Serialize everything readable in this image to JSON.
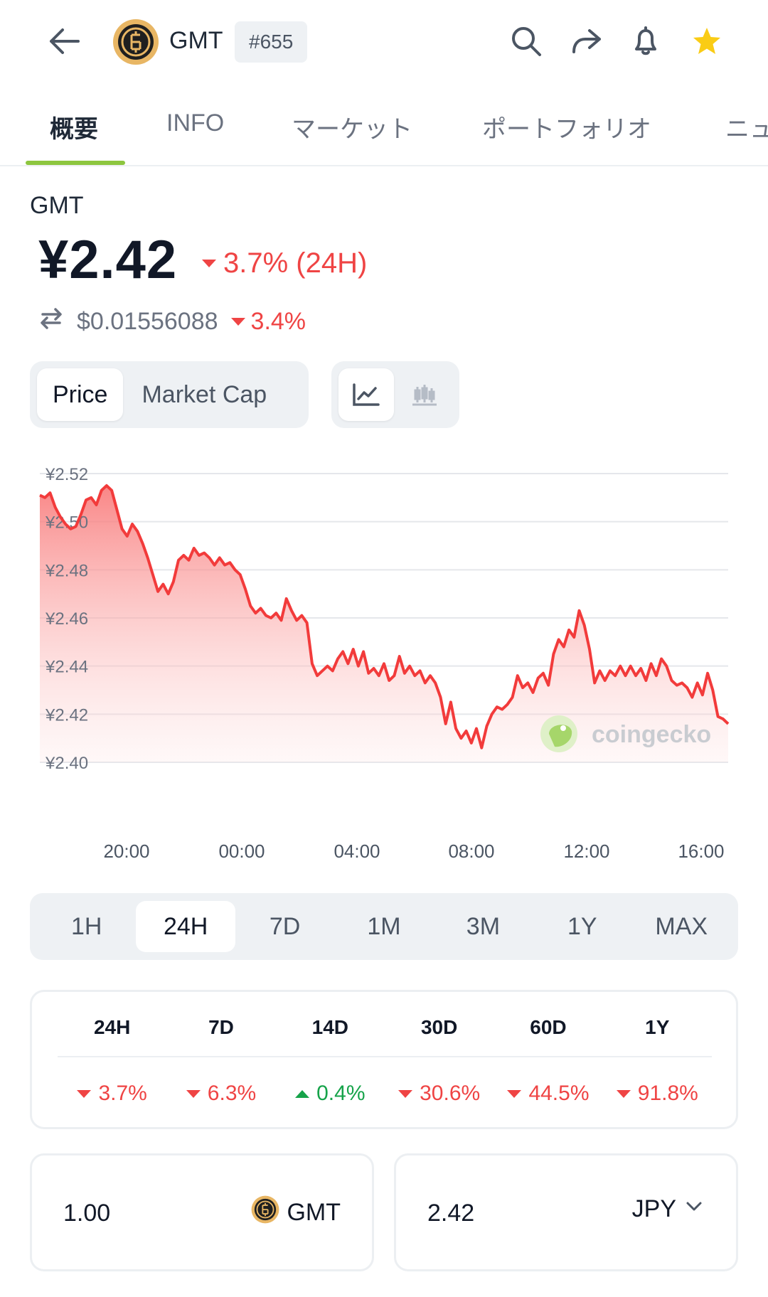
{
  "header": {
    "symbol": "GMT",
    "rank": "#655",
    "icons": [
      "back-arrow-icon",
      "search-icon",
      "share-icon",
      "bell-icon",
      "star-icon"
    ]
  },
  "tabs": [
    {
      "label": "概要",
      "active": true
    },
    {
      "label": "INFO",
      "active": false
    },
    {
      "label": "マーケット",
      "active": false
    },
    {
      "label": "ポートフォリオ",
      "active": false
    },
    {
      "label": "ニュ",
      "active": false
    }
  ],
  "coin": {
    "name": "GMT",
    "price": "¥2.42",
    "change_24h": "3.7% (24H)",
    "usd_price": "$0.01556088",
    "usd_change": "3.4%"
  },
  "toggles": {
    "metric": [
      "Price",
      "Market Cap"
    ],
    "metric_active": "Price",
    "chart_style_icons": [
      "line-chart-icon",
      "candlestick-chart-icon"
    ]
  },
  "colors": {
    "accent_green": "#8dc63f",
    "negative": "#ef4444",
    "positive": "#16a34a",
    "chart_line": "#f23b3b"
  },
  "chart_data": {
    "type": "area",
    "ylim": [
      2.4,
      2.52
    ],
    "yticks": [
      "¥2.52",
      "¥2.50",
      "¥2.48",
      "¥2.46",
      "¥2.44",
      "¥2.42",
      "¥2.40"
    ],
    "xticks": [
      "20:00",
      "00:00",
      "04:00",
      "08:00",
      "12:00",
      "16:00"
    ],
    "watermark": "coingecko",
    "grid": true,
    "series": [
      {
        "values": [
          2.511,
          2.51,
          2.512,
          2.506,
          2.502,
          2.499,
          2.497,
          2.498,
          2.503,
          2.509,
          2.51,
          2.507,
          2.513,
          2.515,
          2.513,
          2.505,
          2.497,
          2.494,
          2.499,
          2.496,
          2.491,
          2.485,
          2.478,
          2.471,
          2.474,
          2.47,
          2.475,
          2.484,
          2.486,
          2.484,
          2.489,
          2.486,
          2.487,
          2.485,
          2.482,
          2.485,
          2.482,
          2.483,
          2.48,
          2.478,
          2.472,
          2.465,
          2.462,
          2.464,
          2.461,
          2.46,
          2.462,
          2.459,
          2.468,
          2.463,
          2.459,
          2.461,
          2.458,
          2.441,
          2.436,
          2.438,
          2.44,
          2.438,
          2.443,
          2.446,
          2.441,
          2.447,
          2.44,
          2.446,
          2.437,
          2.439,
          2.436,
          2.441,
          2.434,
          2.436,
          2.444,
          2.437,
          2.44,
          2.436,
          2.438,
          2.433,
          2.436,
          2.433,
          2.427,
          2.416,
          2.425,
          2.414,
          2.41,
          2.413,
          2.408,
          2.414,
          2.406,
          2.415,
          2.42,
          2.423,
          2.422,
          2.424,
          2.427,
          2.436,
          2.431,
          2.433,
          2.429,
          2.435,
          2.437,
          2.432,
          2.445,
          2.451,
          2.448,
          2.455,
          2.452,
          2.463,
          2.457,
          2.447,
          2.433,
          2.438,
          2.434,
          2.438,
          2.436,
          2.44,
          2.436,
          2.44,
          2.436,
          2.439,
          2.434,
          2.441,
          2.436,
          2.443,
          2.44,
          2.434,
          2.432,
          2.433,
          2.431,
          2.427,
          2.433,
          2.428,
          2.437,
          2.43,
          2.419,
          2.418,
          2.416
        ]
      }
    ]
  },
  "ranges": {
    "items": [
      "1H",
      "24H",
      "7D",
      "1M",
      "3M",
      "1Y",
      "MAX"
    ],
    "active": "24H"
  },
  "performance": {
    "periods": [
      "24H",
      "7D",
      "14D",
      "30D",
      "60D",
      "1Y"
    ],
    "values": [
      {
        "text": "3.7%",
        "direction": "down"
      },
      {
        "text": "6.3%",
        "direction": "down"
      },
      {
        "text": "0.4%",
        "direction": "up"
      },
      {
        "text": "30.6%",
        "direction": "down"
      },
      {
        "text": "44.5%",
        "direction": "down"
      },
      {
        "text": "91.8%",
        "direction": "down"
      }
    ]
  },
  "converter": {
    "from_value": "1.00",
    "from_currency": "GMT",
    "to_value": "2.42",
    "to_currency": "JPY"
  }
}
